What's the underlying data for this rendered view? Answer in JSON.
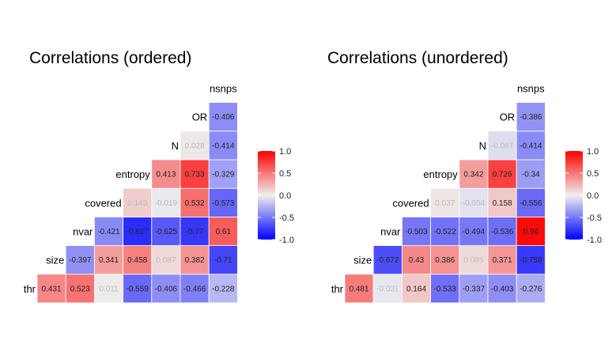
{
  "legend_ticks": [
    "1.0",
    "0.5",
    "0.0",
    "-0.5",
    "-1.0"
  ],
  "colors": {
    "low": "#0000ff",
    "mid": "#eeeeee",
    "high": "#ff0000"
  },
  "chart_data": [
    {
      "type": "heatmap",
      "title": "Correlations (ordered)",
      "variables": [
        "thr",
        "size",
        "nvar",
        "covered",
        "entropy",
        "N",
        "OR",
        "nsnps"
      ],
      "rows": [
        {
          "label": "thr",
          "values": [
            0.431,
            0.523,
            0.011,
            -0.559,
            -0.406,
            -0.466,
            -0.228
          ],
          "labels": [
            "0.431",
            "0.523",
            "0.011",
            "-0.559",
            "-0.406",
            "-0.466",
            "-0.228"
          ]
        },
        {
          "label": "size",
          "values": [
            -0.397,
            0.341,
            0.458,
            0.087,
            0.382,
            -0.71
          ],
          "labels": [
            "-0.397",
            "0.341",
            "0.458",
            "0.087",
            "0.382",
            "-0.71"
          ]
        },
        {
          "label": "nvar",
          "values": [
            -0.421,
            -0.817,
            -0.625,
            -0.77,
            0.61
          ],
          "labels": [
            "-0.421",
            "-0.817",
            "-0.625",
            "-0.77",
            "0.61"
          ]
        },
        {
          "label": "covered",
          "values": [
            0.143,
            -0.019,
            0.532,
            -0.573
          ],
          "labels": [
            "0.143",
            "-0.019",
            "0.532",
            "-0.573"
          ]
        },
        {
          "label": "entropy",
          "values": [
            0.413,
            0.733,
            -0.329
          ],
          "labels": [
            "0.413",
            "0.733",
            "-0.329"
          ]
        },
        {
          "label": "N",
          "values": [
            0.028,
            -0.414
          ],
          "labels": [
            "0.028",
            "-0.414"
          ]
        },
        {
          "label": "OR",
          "values": [
            -0.406
          ],
          "labels": [
            "-0.406"
          ]
        }
      ],
      "top_label": "nsnps",
      "scale": [
        -1,
        1
      ]
    },
    {
      "type": "heatmap",
      "title": "Correlations (unordered)",
      "variables": [
        "thr",
        "size",
        "nvar",
        "covered",
        "entropy",
        "N",
        "OR",
        "nsnps"
      ],
      "rows": [
        {
          "label": "thr",
          "values": [
            0.481,
            -0.031,
            0.164,
            -0.533,
            -0.337,
            -0.403,
            -0.276
          ],
          "labels": [
            "0.481",
            "-0.031",
            "0.164",
            "-0.533",
            "-0.337",
            "-0.403",
            "-0.276"
          ]
        },
        {
          "label": "size",
          "values": [
            -0.672,
            0.43,
            0.386,
            0.085,
            0.371,
            -0.759
          ],
          "labels": [
            "-0.672",
            "0.43",
            "0.386",
            "0.085",
            "0.371",
            "-0.759"
          ]
        },
        {
          "label": "nvar",
          "values": [
            -0.503,
            -0.522,
            -0.494,
            -0.536,
            0.96
          ],
          "labels": [
            "-0.503",
            "-0.522",
            "-0.494",
            "-0.536",
            "0.96"
          ]
        },
        {
          "label": "covered",
          "values": [
            0.037,
            -0.054,
            0.158,
            -0.556
          ],
          "labels": [
            "0.037",
            "-0.054",
            "0.158",
            "-0.556"
          ]
        },
        {
          "label": "entropy",
          "values": [
            0.342,
            0.726,
            -0.34
          ],
          "labels": [
            "0.342",
            "0.726",
            "-0.34"
          ]
        },
        {
          "label": "N",
          "values": [
            -0.067,
            -0.414
          ],
          "labels": [
            "-0.067",
            "-0.414"
          ]
        },
        {
          "label": "OR",
          "values": [
            -0.386
          ],
          "labels": [
            "-0.386"
          ]
        }
      ],
      "top_label": "nsnps",
      "scale": [
        -1,
        1
      ]
    }
  ]
}
